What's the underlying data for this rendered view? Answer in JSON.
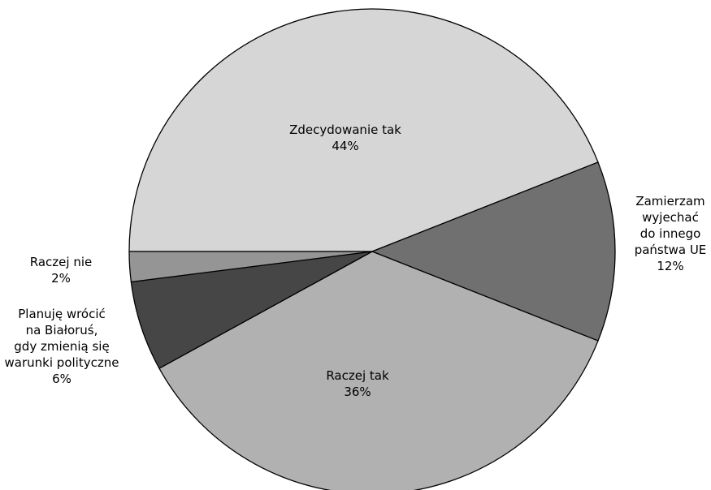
{
  "chart_data": {
    "type": "pie",
    "title": "",
    "slices": [
      {
        "label": "Zdecydowanie tak",
        "value": 44,
        "value_label": "44%",
        "color": "#d6d6d6"
      },
      {
        "label": "Zamierzam wyjechać do innego państwa UE",
        "label_lines": [
          "Zamierzam",
          "wyjechać",
          "do innego",
          "państwa UE"
        ],
        "value": 12,
        "value_label": "12%",
        "color": "#707070"
      },
      {
        "label": "Raczej tak",
        "value": 36,
        "value_label": "36%",
        "color": "#b1b1b1"
      },
      {
        "label": "Planuję wrócić na Białoruś, gdy zmienią się warunki polityczne",
        "label_lines": [
          "Planuję wrócić",
          "na Białoruś,",
          "gdy zmienią się",
          "warunki polityczne"
        ],
        "value": 6,
        "value_label": "6%",
        "color": "#464646"
      },
      {
        "label": "Raczej nie",
        "value": 2,
        "value_label": "2%",
        "color": "#959595"
      }
    ],
    "legend": "none",
    "label_placement": "inside for large slices, outside for small slices"
  }
}
